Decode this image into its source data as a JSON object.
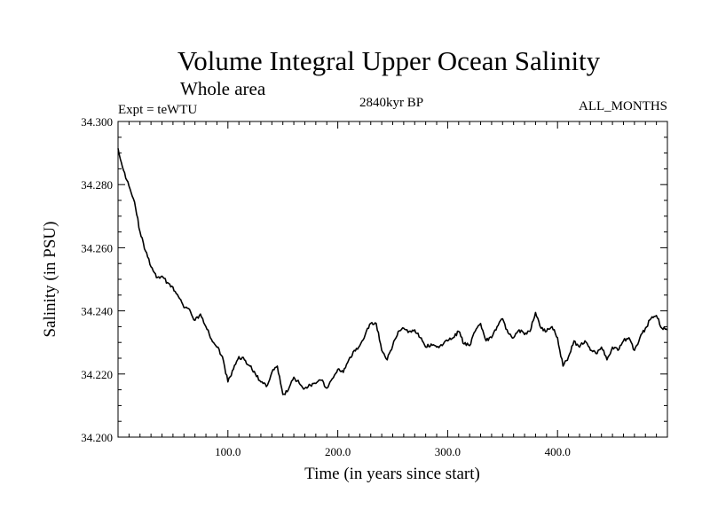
{
  "chart_data": {
    "type": "line",
    "title": "Volume Integral Upper Ocean Salinity",
    "subtitle": "Whole area",
    "left_note": "Expt = teWTU",
    "center_note": "2840kyr BP",
    "right_note": "ALL_MONTHS",
    "xlabel": "Time (in years since start)",
    "ylabel": "Salinity (in PSU)",
    "xlim": [
      0,
      500
    ],
    "ylim": [
      34.2,
      34.3
    ],
    "xticks": [
      100,
      200,
      300,
      400
    ],
    "xtick_labels": [
      "100.0",
      "200.0",
      "300.0",
      "400.0"
    ],
    "yticks": [
      34.2,
      34.22,
      34.24,
      34.26,
      34.28,
      34.3
    ],
    "ytick_labels": [
      "34.200",
      "34.220",
      "34.240",
      "34.260",
      "34.280",
      "34.300"
    ],
    "series": [
      {
        "name": "Salinity",
        "color": "#000000",
        "x": [
          0,
          5,
          10,
          15,
          20,
          25,
          30,
          35,
          40,
          45,
          50,
          55,
          60,
          65,
          70,
          75,
          80,
          85,
          90,
          95,
          100,
          105,
          110,
          115,
          120,
          125,
          130,
          135,
          140,
          145,
          150,
          155,
          160,
          165,
          170,
          175,
          180,
          185,
          190,
          195,
          200,
          205,
          210,
          215,
          220,
          225,
          230,
          235,
          240,
          245,
          250,
          255,
          260,
          265,
          270,
          275,
          280,
          285,
          290,
          295,
          300,
          305,
          310,
          315,
          320,
          325,
          330,
          335,
          340,
          345,
          350,
          355,
          360,
          365,
          370,
          375,
          380,
          385,
          390,
          395,
          400,
          405,
          410,
          415,
          420,
          425,
          430,
          435,
          440,
          445,
          450,
          455,
          460,
          465,
          470,
          475,
          480,
          485,
          490,
          495,
          500
        ],
        "values": [
          34.2915,
          34.2845,
          34.2795,
          34.2745,
          34.265,
          34.259,
          34.254,
          34.2505,
          34.251,
          34.249,
          34.2475,
          34.2445,
          34.241,
          34.2405,
          34.237,
          34.239,
          34.235,
          34.231,
          34.2285,
          34.2255,
          34.2175,
          34.2215,
          34.2255,
          34.2245,
          34.2225,
          34.22,
          34.2175,
          34.216,
          34.2205,
          34.2225,
          34.2135,
          34.215,
          34.219,
          34.217,
          34.2155,
          34.2165,
          34.217,
          34.218,
          34.2155,
          34.2185,
          34.2215,
          34.2205,
          34.2245,
          34.2275,
          34.229,
          34.2325,
          34.236,
          34.236,
          34.2275,
          34.2245,
          34.229,
          34.2335,
          34.2345,
          34.2335,
          34.234,
          34.2315,
          34.2285,
          34.2295,
          34.2285,
          34.229,
          34.2305,
          34.2315,
          34.2335,
          34.2295,
          34.229,
          34.2335,
          34.236,
          34.2305,
          34.2315,
          34.235,
          34.2375,
          34.233,
          34.2315,
          34.234,
          34.2325,
          34.2335,
          34.2395,
          34.2345,
          34.2335,
          34.235,
          34.2315,
          34.2225,
          34.2255,
          34.2305,
          34.2285,
          34.2305,
          34.2275,
          34.2265,
          34.2285,
          34.2245,
          34.2285,
          34.2275,
          34.2305,
          34.2315,
          34.2275,
          34.2315,
          34.2345,
          34.2375,
          34.2385,
          34.2345,
          34.234
        ]
      }
    ]
  }
}
